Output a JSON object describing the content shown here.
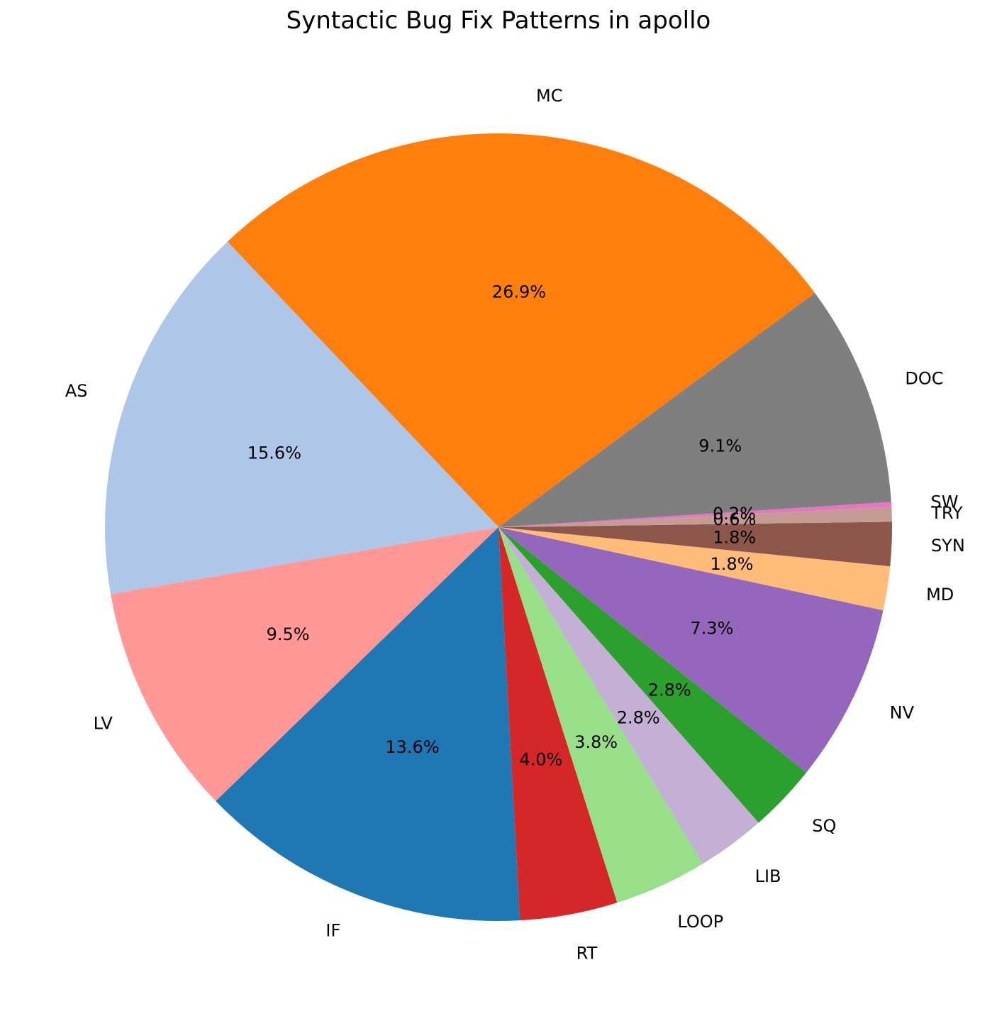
{
  "chart_data": {
    "type": "pie",
    "title": "Syntactic Bug Fix Patterns in apollo",
    "slices": [
      {
        "label": "MC",
        "percent": 26.9,
        "pct_label": "26.9%",
        "color": "#ff7f0e"
      },
      {
        "label": "AS",
        "percent": 15.6,
        "pct_label": "15.6%",
        "color": "#aec7e8"
      },
      {
        "label": "LV",
        "percent": 9.5,
        "pct_label": "9.5%",
        "color": "#ff9896"
      },
      {
        "label": "IF",
        "percent": 13.6,
        "pct_label": "13.6%",
        "color": "#1f77b4"
      },
      {
        "label": "RT",
        "percent": 4.0,
        "pct_label": "4.0%",
        "color": "#d62728"
      },
      {
        "label": "LOOP",
        "percent": 3.8,
        "pct_label": "3.8%",
        "color": "#98df8a"
      },
      {
        "label": "LIB",
        "percent": 2.8,
        "pct_label": "2.8%",
        "color": "#c5b0d5"
      },
      {
        "label": "SQ",
        "percent": 2.8,
        "pct_label": "2.8%",
        "color": "#2ca02c"
      },
      {
        "label": "NV",
        "percent": 7.3,
        "pct_label": "7.3%",
        "color": "#9467bd"
      },
      {
        "label": "MD",
        "percent": 1.8,
        "pct_label": "1.8%",
        "color": "#ffbb78"
      },
      {
        "label": "SYN",
        "percent": 1.8,
        "pct_label": "1.8%",
        "color": "#8c564b"
      },
      {
        "label": "TRY",
        "percent": 0.6,
        "pct_label": "0.6%",
        "color": "#c49c94"
      },
      {
        "label": "SW",
        "percent": 0.2,
        "pct_label": "0.2%",
        "color": "#e377c2"
      },
      {
        "label": "DOC",
        "percent": 9.1,
        "pct_label": "9.1%",
        "color": "#7f7f7f"
      }
    ],
    "start_angle_deg": 36.5,
    "direction": "counterclockwise",
    "legend": "none"
  }
}
